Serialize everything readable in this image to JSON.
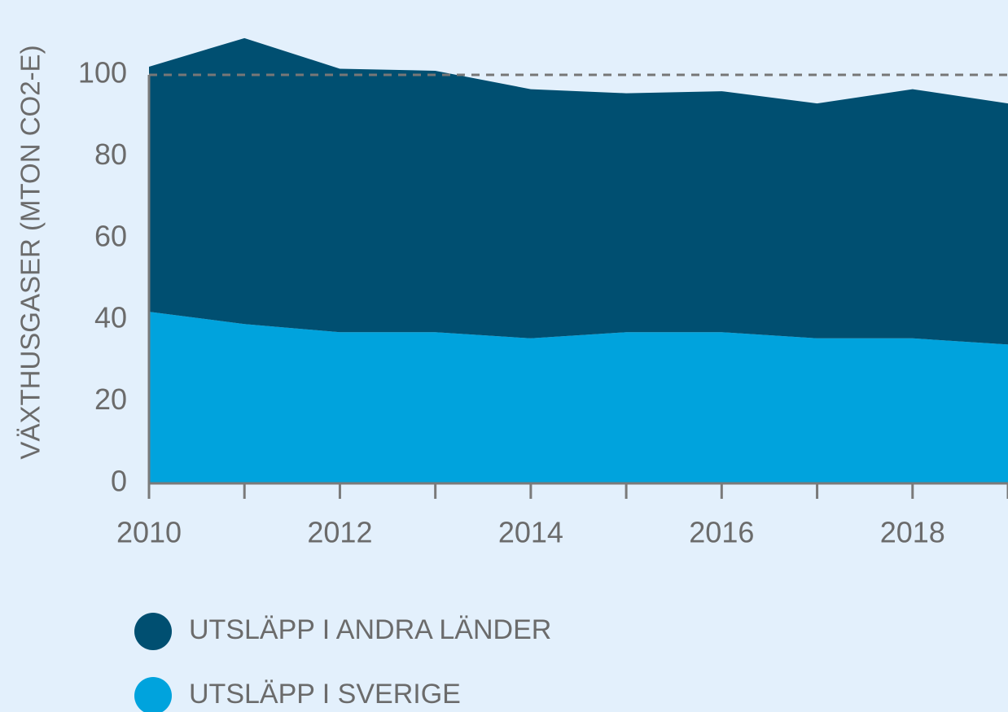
{
  "chart_data": {
    "type": "stacked_area",
    "x": [
      2010,
      2011,
      2012,
      2013,
      2014,
      2015,
      2016,
      2017,
      2018,
      2019
    ],
    "series": [
      {
        "name": "UTSLÄPP I ANDRA LÄNDER",
        "color": "#004f71",
        "values": [
          60,
          70,
          64.5,
          64,
          61,
          58.5,
          59,
          57.5,
          61,
          59
        ]
      },
      {
        "name": "UTSLÄPP I SVERIGE",
        "color": "#00a3dd",
        "values": [
          42,
          39,
          37,
          37,
          35.5,
          37,
          37,
          35.5,
          35.5,
          34
        ]
      }
    ],
    "y_label": "VÄXTHUSGASER (MTON CO2-E)",
    "xlim": [
      2010,
      2019
    ],
    "xticks": [
      2010,
      2012,
      2014,
      2016,
      2018
    ],
    "minor_xticks": [
      2011,
      2013,
      2015,
      2017,
      2019
    ],
    "ylim": [
      0,
      100
    ],
    "yticks": [
      0,
      20,
      40,
      60,
      80,
      100
    ],
    "reference_line": 100,
    "legend": "bottom-left"
  }
}
